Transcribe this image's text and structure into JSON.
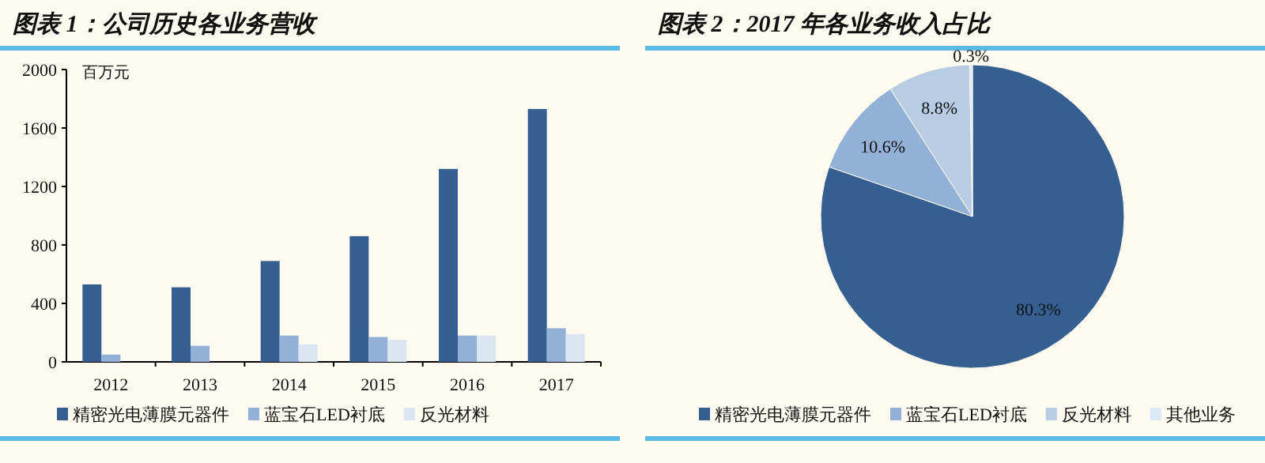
{
  "chart_data": [
    {
      "type": "bar",
      "title": "图表 1：公司历史各业务营收",
      "ylabel": "百万元",
      "categories": [
        "2012",
        "2013",
        "2014",
        "2015",
        "2016",
        "2017"
      ],
      "ylim": [
        0,
        2000
      ],
      "yticks": [
        0,
        400,
        800,
        1200,
        1600,
        2000
      ],
      "legend": "bottom",
      "series": [
        {
          "name": "精密光电薄膜元器件",
          "color": "#355f91",
          "values": [
            530,
            510,
            690,
            860,
            1320,
            1730
          ]
        },
        {
          "name": "蓝宝石LED衬底",
          "color": "#93b1d7",
          "values": [
            50,
            110,
            180,
            170,
            180,
            230
          ]
        },
        {
          "name": "反光材料",
          "color": "#dbe5f1",
          "values": [
            null,
            null,
            120,
            150,
            180,
            190
          ]
        }
      ]
    },
    {
      "type": "pie",
      "title": "图表 2：2017 年各业务收入占比",
      "categories": [
        "精密光电薄膜元器件",
        "蓝宝石LED衬底",
        "反光材料",
        "其他业务"
      ],
      "values": [
        80.3,
        10.6,
        8.8,
        0.3
      ],
      "colors": [
        "#355f91",
        "#93b1d7",
        "#b8cce4",
        "#dde8f5"
      ],
      "value_labels": [
        "80.3%",
        "10.6%",
        "8.8%",
        "0.3%"
      ],
      "legend": "bottom"
    }
  ]
}
